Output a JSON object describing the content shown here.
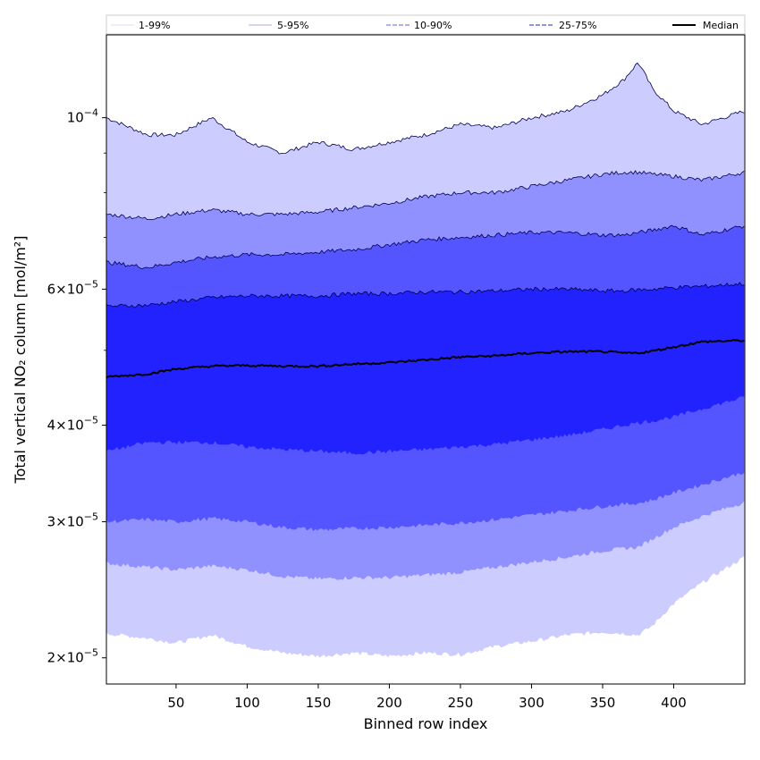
{
  "chart_data": {
    "type": "area",
    "title": "",
    "xlabel": "Binned row index",
    "ylabel": "Total vertical NO₂ column [mol/m²]",
    "xlim": [
      1,
      450
    ],
    "ylim": [
      1.85e-05,
      0.000128
    ],
    "yscale": "log",
    "grid": false,
    "legend_position": "top",
    "x_ticks": [
      50,
      100,
      150,
      200,
      250,
      300,
      350,
      400
    ],
    "y_ticks_major": [
      {
        "value": 2e-05,
        "mantissa": "2",
        "exponent": "−5"
      },
      {
        "value": 3e-05,
        "mantissa": "3",
        "exponent": "−5"
      },
      {
        "value": 4e-05,
        "mantissa": "4",
        "exponent": "−5"
      },
      {
        "value": 6e-05,
        "mantissa": "6",
        "exponent": "−5"
      },
      {
        "value": 0.0001,
        "mantissa": "",
        "exponent": "−4"
      }
    ],
    "y_ticks_minor": [
      5e-05,
      7e-05,
      8e-05,
      9e-05
    ],
    "x": [
      1,
      30,
      50,
      75,
      100,
      125,
      150,
      175,
      200,
      225,
      250,
      275,
      300,
      325,
      350,
      365,
      375,
      385,
      400,
      420,
      450
    ],
    "series": [
      {
        "name": "1-99%",
        "lower": [
          2.15e-05,
          2.12e-05,
          2.09e-05,
          2.14e-05,
          2.07e-05,
          2.03e-05,
          2.01e-05,
          2.03e-05,
          2.01e-05,
          2.03e-05,
          2.02e-05,
          2.07e-05,
          2.1e-05,
          2.14e-05,
          2.16e-05,
          2.15e-05,
          2.14e-05,
          2.2e-05,
          2.35e-05,
          2.5e-05,
          2.7e-05
        ],
        "upper": [
          0.0001,
          9.5e-05,
          9.5e-05,
          0.0001,
          9.3e-05,
          9e-05,
          9.3e-05,
          9.1e-05,
          9.3e-05,
          9.5e-05,
          9.8e-05,
          9.7e-05,
          0.0001,
          0.000102,
          0.000107,
          0.000112,
          0.000118,
          0.000109,
          0.000102,
          9.8e-05,
          0.000102
        ]
      },
      {
        "name": "5-95%",
        "lower": [
          2.65e-05,
          2.62e-05,
          2.6e-05,
          2.63e-05,
          2.6e-05,
          2.55e-05,
          2.53e-05,
          2.54e-05,
          2.54e-05,
          2.56e-05,
          2.58e-05,
          2.62e-05,
          2.66e-05,
          2.7e-05,
          2.75e-05,
          2.77e-05,
          2.78e-05,
          2.85e-05,
          2.95e-05,
          3.05e-05,
          3.18e-05
        ],
        "upper": [
          7.5e-05,
          7.4e-05,
          7.5e-05,
          7.6e-05,
          7.5e-05,
          7.5e-05,
          7.55e-05,
          7.65e-05,
          7.75e-05,
          7.9e-05,
          8e-05,
          8e-05,
          8.15e-05,
          8.3e-05,
          8.45e-05,
          8.5e-05,
          8.5e-05,
          8.45e-05,
          8.4e-05,
          8.3e-05,
          8.5e-05
        ]
      },
      {
        "name": "10-90%",
        "lower": [
          3e-05,
          3.02e-05,
          3e-05,
          3.03e-05,
          3e-05,
          2.95e-05,
          2.93e-05,
          2.94e-05,
          2.95e-05,
          2.97e-05,
          2.99e-05,
          3.02e-05,
          3.06e-05,
          3.1e-05,
          3.14e-05,
          3.16e-05,
          3.17e-05,
          3.2e-05,
          3.27e-05,
          3.35e-05,
          3.48e-05
        ],
        "upper": [
          6.5e-05,
          6.4e-05,
          6.5e-05,
          6.6e-05,
          6.65e-05,
          6.65e-05,
          6.7e-05,
          6.75e-05,
          6.85e-05,
          6.95e-05,
          7e-05,
          7.05e-05,
          7.1e-05,
          7.1e-05,
          7.05e-05,
          7.05e-05,
          7.1e-05,
          7.15e-05,
          7.25e-05,
          7.05e-05,
          7.25e-05
        ]
      },
      {
        "name": "25-75%",
        "lower": [
          3.7e-05,
          3.8e-05,
          3.8e-05,
          3.8e-05,
          3.75e-05,
          3.72e-05,
          3.7e-05,
          3.68e-05,
          3.7e-05,
          3.72e-05,
          3.75e-05,
          3.78e-05,
          3.83e-05,
          3.88e-05,
          3.95e-05,
          4e-05,
          4.03e-05,
          4.05e-05,
          4.1e-05,
          4.2e-05,
          4.35e-05
        ],
        "upper": [
          5.7e-05,
          5.72e-05,
          5.78e-05,
          5.85e-05,
          5.88e-05,
          5.88e-05,
          5.88e-05,
          5.92e-05,
          5.92e-05,
          5.95e-05,
          5.95e-05,
          5.97e-05,
          6e-05,
          6e-05,
          5.97e-05,
          5.97e-05,
          5.99e-05,
          6e-05,
          6.03e-05,
          6.05e-05,
          6.1e-05
        ]
      },
      {
        "name": "Median",
        "values": [
          4.62e-05,
          4.66e-05,
          4.73e-05,
          4.77e-05,
          4.78e-05,
          4.77e-05,
          4.77e-05,
          4.8e-05,
          4.82e-05,
          4.86e-05,
          4.9e-05,
          4.92e-05,
          4.96e-05,
          4.98e-05,
          4.98e-05,
          4.96e-05,
          4.96e-05,
          4.99e-05,
          5.05e-05,
          5.13e-05,
          5.15e-05
        ]
      }
    ],
    "colors": {
      "band_1_99": "#ccccff",
      "band_5_95": "#9090ff",
      "band_10_90": "#5555ff",
      "band_25_75": "#2222ff",
      "median": "#000000",
      "edge": "#000050"
    },
    "legend": [
      {
        "label": "1-99%",
        "style": "thin",
        "color": "#d0d0ff"
      },
      {
        "label": "5-95%",
        "style": "thin",
        "color": "#9090dd"
      },
      {
        "label": "10-90%",
        "style": "dashed",
        "color": "#8080ee"
      },
      {
        "label": "25-75%",
        "style": "dashed",
        "color": "#5050dd"
      },
      {
        "label": "Median",
        "style": "solid",
        "color": "#000000"
      }
    ]
  }
}
